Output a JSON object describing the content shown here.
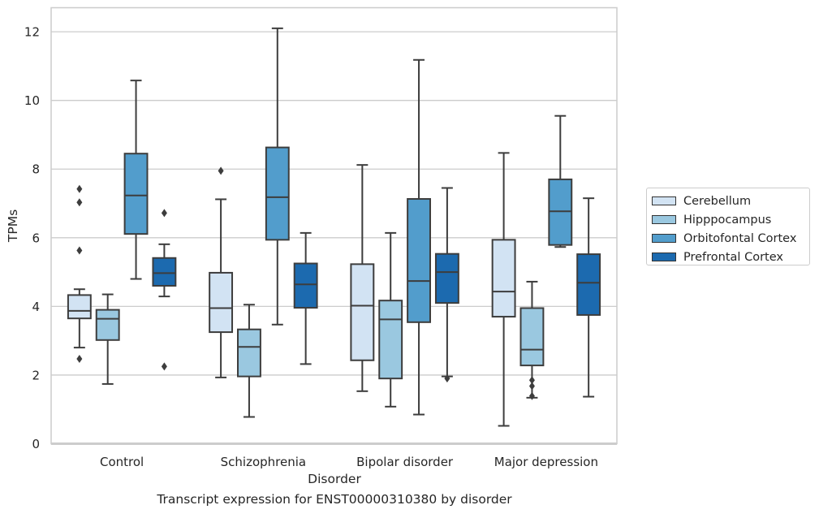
{
  "caption": "Transcript expression for ENST00000310380 by disorder",
  "chart_data": {
    "type": "box",
    "xlabel": "Disorder",
    "ylabel": "TPMs",
    "ylim": [
      0,
      12.7
    ],
    "yticks": [
      0,
      2,
      4,
      6,
      8,
      10,
      12
    ],
    "grid": "horizontal",
    "legend_position": "right",
    "categories": [
      "Control",
      "Schizophrenia",
      "Bipolar disorder",
      "Major depression"
    ],
    "series": [
      {
        "name": "Cerebellum",
        "color": "#d2e3f3",
        "boxes": [
          {
            "whisker_low": 2.8,
            "q1": 3.65,
            "median": 3.87,
            "q3": 4.33,
            "whisker_high": 4.5,
            "outliers": [
              7.42,
              7.03,
              5.63,
              2.47
            ]
          },
          {
            "whisker_low": 1.93,
            "q1": 3.25,
            "median": 3.95,
            "q3": 4.98,
            "whisker_high": 7.12,
            "outliers": [
              7.95
            ]
          },
          {
            "whisker_low": 1.53,
            "q1": 2.43,
            "median": 4.02,
            "q3": 5.23,
            "whisker_high": 8.12,
            "outliers": []
          },
          {
            "whisker_low": 0.52,
            "q1": 3.7,
            "median": 4.43,
            "q3": 5.94,
            "whisker_high": 8.47,
            "outliers": []
          }
        ]
      },
      {
        "name": "Hipppocampus",
        "color": "#9ac8e0",
        "boxes": [
          {
            "whisker_low": 1.74,
            "q1": 3.02,
            "median": 3.64,
            "q3": 3.9,
            "whisker_high": 4.35,
            "outliers": []
          },
          {
            "whisker_low": 0.78,
            "q1": 1.96,
            "median": 2.82,
            "q3": 3.33,
            "whisker_high": 4.05,
            "outliers": []
          },
          {
            "whisker_low": 1.08,
            "q1": 1.9,
            "median": 3.62,
            "q3": 4.17,
            "whisker_high": 6.14,
            "outliers": []
          },
          {
            "whisker_low": 1.34,
            "q1": 2.28,
            "median": 2.74,
            "q3": 3.95,
            "whisker_high": 4.72,
            "outliers": [
              1.85,
              1.68,
              1.39
            ]
          }
        ]
      },
      {
        "name": "Orbitofontal Cortex",
        "color": "#529dcc",
        "boxes": [
          {
            "whisker_low": 4.8,
            "q1": 6.11,
            "median": 7.23,
            "q3": 8.45,
            "whisker_high": 10.58,
            "outliers": []
          },
          {
            "whisker_low": 3.47,
            "q1": 5.94,
            "median": 7.18,
            "q3": 8.63,
            "whisker_high": 12.1,
            "outliers": []
          },
          {
            "whisker_low": 0.85,
            "q1": 3.54,
            "median": 4.74,
            "q3": 7.13,
            "whisker_high": 11.18,
            "outliers": []
          },
          {
            "whisker_low": 5.73,
            "q1": 5.79,
            "median": 6.77,
            "q3": 7.7,
            "whisker_high": 9.55,
            "outliers": []
          }
        ]
      },
      {
        "name": "Prefrontal Cortex",
        "color": "#1c6aaf",
        "boxes": [
          {
            "whisker_low": 4.29,
            "q1": 4.6,
            "median": 4.97,
            "q3": 5.41,
            "whisker_high": 5.81,
            "outliers": [
              6.72,
              2.25
            ]
          },
          {
            "whisker_low": 2.32,
            "q1": 3.96,
            "median": 4.64,
            "q3": 5.25,
            "whisker_high": 6.14,
            "outliers": []
          },
          {
            "whisker_low": 1.96,
            "q1": 4.1,
            "median": 5.0,
            "q3": 5.53,
            "whisker_high": 7.45,
            "outliers": [
              1.9
            ]
          },
          {
            "whisker_low": 1.37,
            "q1": 3.75,
            "median": 4.69,
            "q3": 5.52,
            "whisker_high": 7.15,
            "outliers": []
          }
        ]
      }
    ]
  }
}
